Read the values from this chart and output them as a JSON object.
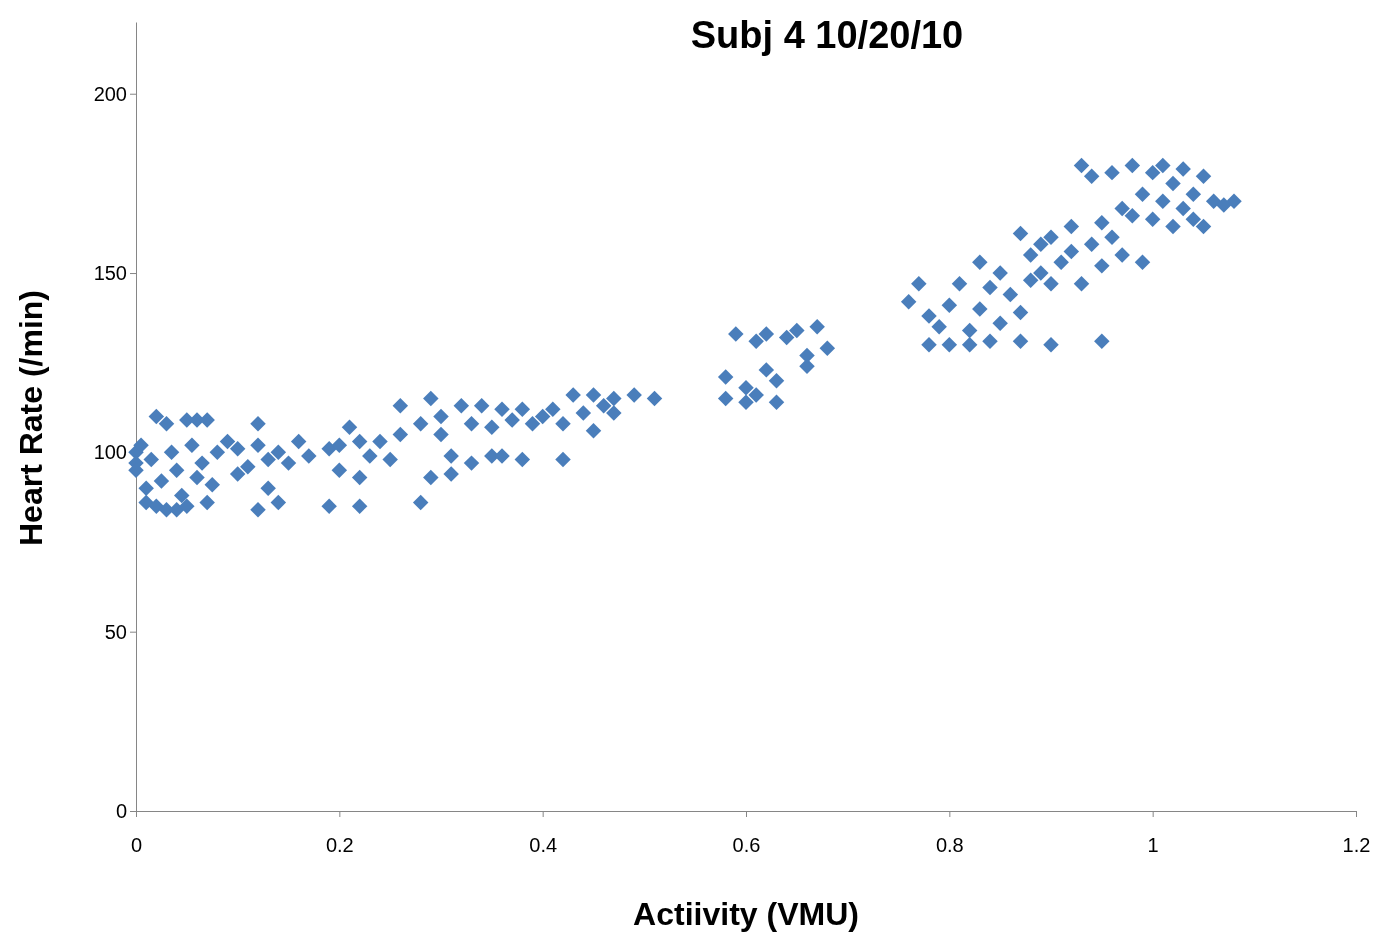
{
  "chart_data": {
    "type": "scatter",
    "title": "Subj 4 10/20/10",
    "xlabel": "Actiivity (VMU)",
    "ylabel": "Heart Rate (/min)",
    "xlim": [
      0,
      1.2
    ],
    "xticks": [
      0,
      0.2,
      0.4,
      0.6,
      0.8,
      1,
      1.2
    ],
    "ylim": [
      0,
      220
    ],
    "yticks": [
      0,
      50,
      100,
      150,
      200
    ],
    "grid": false,
    "marker": "diamond",
    "series": [
      {
        "color": "#4a7ebb",
        "x": [
          0,
          0,
          0,
          0.005,
          0.01,
          0.01,
          0.015,
          0.02,
          0.02,
          0.025,
          0.03,
          0.03,
          0.035,
          0.04,
          0.04,
          0.045,
          0.05,
          0.05,
          0.055,
          0.06,
          0.06,
          0.065,
          0.07,
          0.07,
          0.075,
          0.08,
          0.09,
          0.1,
          0.1,
          0.11,
          0.12,
          0.12,
          0.12,
          0.13,
          0.13,
          0.14,
          0.14,
          0.15,
          0.16,
          0.17,
          0.19,
          0.19,
          0.2,
          0.2,
          0.21,
          0.22,
          0.22,
          0.22,
          0.23,
          0.24,
          0.25,
          0.26,
          0.26,
          0.28,
          0.28,
          0.29,
          0.29,
          0.3,
          0.3,
          0.31,
          0.31,
          0.32,
          0.33,
          0.33,
          0.34,
          0.35,
          0.35,
          0.36,
          0.36,
          0.37,
          0.38,
          0.38,
          0.39,
          0.4,
          0.41,
          0.42,
          0.42,
          0.43,
          0.44,
          0.45,
          0.45,
          0.46,
          0.47,
          0.47,
          0.49,
          0.51,
          0.58,
          0.58,
          0.59,
          0.6,
          0.6,
          0.61,
          0.61,
          0.62,
          0.62,
          0.63,
          0.63,
          0.64,
          0.65,
          0.66,
          0.66,
          0.67,
          0.68,
          0.76,
          0.77,
          0.78,
          0.78,
          0.79,
          0.8,
          0.8,
          0.81,
          0.82,
          0.82,
          0.83,
          0.83,
          0.84,
          0.84,
          0.85,
          0.85,
          0.86,
          0.87,
          0.87,
          0.87,
          0.88,
          0.88,
          0.89,
          0.89,
          0.9,
          0.9,
          0.9,
          0.91,
          0.92,
          0.92,
          0.93,
          0.93,
          0.94,
          0.94,
          0.95,
          0.95,
          0.95,
          0.96,
          0.96,
          0.97,
          0.97,
          0.98,
          0.98,
          0.99,
          0.99,
          1.0,
          1.0,
          1.01,
          1.01,
          1.02,
          1.02,
          1.03,
          1.03,
          1.04,
          1.04,
          1.05,
          1.05,
          1.06,
          1.07,
          1.08
        ],
        "values": [
          100,
          97,
          95,
          102,
          90,
          86,
          98,
          110,
          85,
          92,
          108,
          84,
          100,
          95,
          84,
          88,
          109,
          85,
          102,
          93,
          109,
          97,
          109,
          86,
          91,
          100,
          103,
          101,
          94,
          96,
          108,
          84,
          102,
          90,
          98,
          86,
          100,
          97,
          103,
          99,
          85,
          101,
          95,
          102,
          107,
          93,
          85,
          103,
          99,
          103,
          98,
          113,
          105,
          86,
          108,
          115,
          93,
          110,
          105,
          94,
          99,
          113,
          97,
          108,
          113,
          99,
          107,
          112,
          99,
          109,
          98,
          112,
          108,
          110,
          112,
          98,
          108,
          116,
          111,
          116,
          106,
          113,
          111,
          115,
          116,
          115,
          121,
          115,
          133,
          114,
          118,
          131,
          116,
          123,
          133,
          114,
          120,
          132,
          134,
          124,
          127,
          135,
          129,
          142,
          147,
          130,
          138,
          135,
          130,
          141,
          147,
          134,
          130,
          153,
          140,
          131,
          146,
          136,
          150,
          144,
          161,
          139,
          131,
          148,
          155,
          158,
          150,
          130,
          147,
          160,
          153,
          163,
          156,
          180,
          147,
          158,
          177,
          164,
          131,
          152,
          178,
          160,
          168,
          155,
          180,
          166,
          153,
          172,
          178,
          165,
          170,
          180,
          163,
          175,
          168,
          179,
          165,
          172,
          177,
          163,
          170,
          169,
          170
        ]
      }
    ]
  }
}
